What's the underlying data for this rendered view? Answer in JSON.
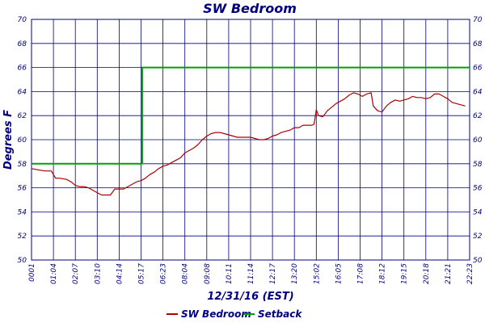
{
  "chart_data": {
    "type": "line",
    "title": "SW Bedroom",
    "xlabel": "12/31/16 (EST)",
    "ylabel": "Degrees F",
    "ylim": [
      50,
      70
    ],
    "y_ticks": [
      "50",
      "52",
      "54",
      "56",
      "58",
      "60",
      "62",
      "64",
      "66",
      "68",
      "70"
    ],
    "x_ticks": [
      "0001",
      "01:04",
      "02:07",
      "03:10",
      "04:14",
      "05:17",
      "06:23",
      "08:04",
      "09:08",
      "10:11",
      "11:14",
      "12:17",
      "13:20",
      "15:02",
      "16:05",
      "17:08",
      "18:12",
      "19:15",
      "20:18",
      "21:21",
      "22:23"
    ],
    "grid": true,
    "legend_placement": "bottom",
    "series": [
      {
        "name": "SW Bedroom",
        "color": "#aa0000",
        "points": [
          [
            0,
            57.6
          ],
          [
            0.3,
            57.5
          ],
          [
            0.6,
            57.4
          ],
          [
            0.9,
            57.4
          ],
          [
            1.1,
            56.8
          ],
          [
            1.3,
            56.8
          ],
          [
            1.6,
            56.7
          ],
          [
            1.8,
            56.5
          ],
          [
            2.0,
            56.2
          ],
          [
            2.2,
            56.1
          ],
          [
            2.4,
            56.1
          ],
          [
            2.6,
            56.0
          ],
          [
            2.8,
            55.8
          ],
          [
            3.0,
            55.6
          ],
          [
            3.2,
            55.4
          ],
          [
            3.4,
            55.4
          ],
          [
            3.6,
            55.4
          ],
          [
            3.8,
            55.9
          ],
          [
            4.0,
            55.9
          ],
          [
            4.2,
            55.9
          ],
          [
            4.4,
            56.1
          ],
          [
            4.6,
            56.3
          ],
          [
            4.8,
            56.5
          ],
          [
            5.0,
            56.6
          ],
          [
            5.2,
            56.8
          ],
          [
            5.4,
            57.1
          ],
          [
            5.6,
            57.3
          ],
          [
            5.8,
            57.6
          ],
          [
            6.0,
            57.8
          ],
          [
            6.2,
            57.9
          ],
          [
            6.4,
            58.1
          ],
          [
            6.6,
            58.3
          ],
          [
            6.8,
            58.5
          ],
          [
            7.0,
            58.9
          ],
          [
            7.2,
            59.1
          ],
          [
            7.4,
            59.3
          ],
          [
            7.6,
            59.6
          ],
          [
            7.8,
            60.0
          ],
          [
            8.0,
            60.3
          ],
          [
            8.2,
            60.5
          ],
          [
            8.4,
            60.6
          ],
          [
            8.6,
            60.6
          ],
          [
            8.8,
            60.5
          ],
          [
            9.0,
            60.4
          ],
          [
            9.2,
            60.3
          ],
          [
            9.4,
            60.2
          ],
          [
            9.6,
            60.2
          ],
          [
            9.8,
            60.2
          ],
          [
            10.0,
            60.2
          ],
          [
            10.2,
            60.1
          ],
          [
            10.4,
            60.0
          ],
          [
            10.6,
            60.0
          ],
          [
            10.8,
            60.1
          ],
          [
            11.0,
            60.3
          ],
          [
            11.2,
            60.4
          ],
          [
            11.4,
            60.6
          ],
          [
            11.6,
            60.7
          ],
          [
            11.8,
            60.8
          ],
          [
            12.0,
            61.0
          ],
          [
            12.2,
            61.0
          ],
          [
            12.4,
            61.2
          ],
          [
            12.6,
            61.2
          ],
          [
            12.8,
            61.2
          ],
          [
            12.9,
            61.3
          ],
          [
            13.0,
            62.5
          ],
          [
            13.1,
            62.0
          ],
          [
            13.3,
            61.9
          ],
          [
            13.5,
            62.4
          ],
          [
            13.7,
            62.7
          ],
          [
            13.9,
            63.0
          ],
          [
            14.1,
            63.2
          ],
          [
            14.3,
            63.4
          ],
          [
            14.5,
            63.7
          ],
          [
            14.7,
            63.9
          ],
          [
            14.9,
            63.8
          ],
          [
            15.1,
            63.6
          ],
          [
            15.3,
            63.8
          ],
          [
            15.5,
            63.9
          ],
          [
            15.6,
            62.8
          ],
          [
            15.8,
            62.4
          ],
          [
            16.0,
            62.3
          ],
          [
            16.2,
            62.8
          ],
          [
            16.4,
            63.1
          ],
          [
            16.6,
            63.3
          ],
          [
            16.8,
            63.2
          ],
          [
            17.0,
            63.3
          ],
          [
            17.2,
            63.4
          ],
          [
            17.4,
            63.6
          ],
          [
            17.6,
            63.5
          ],
          [
            17.8,
            63.5
          ],
          [
            18.0,
            63.4
          ],
          [
            18.2,
            63.5
          ],
          [
            18.4,
            63.8
          ],
          [
            18.6,
            63.8
          ],
          [
            18.8,
            63.6
          ],
          [
            19.0,
            63.4
          ],
          [
            19.2,
            63.1
          ],
          [
            19.4,
            63.0
          ],
          [
            19.6,
            62.9
          ],
          [
            19.8,
            62.8
          ]
        ]
      },
      {
        "name": "Setback",
        "color": "#00a000",
        "points": [
          [
            0,
            58
          ],
          [
            5.05,
            58
          ],
          [
            5.05,
            66
          ],
          [
            20,
            66
          ]
        ]
      }
    ]
  }
}
